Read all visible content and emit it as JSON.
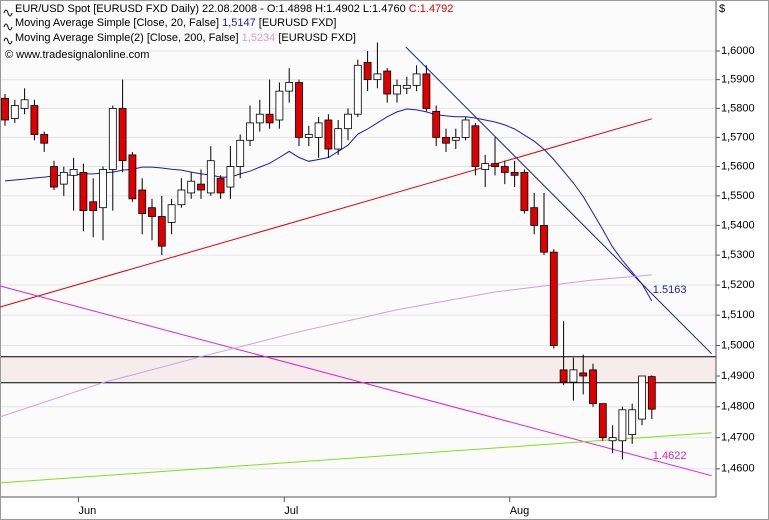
{
  "chart_data": {
    "type": "candlestick",
    "title": "EUR/USD Spot [EURUSD FXD  Daily) 22.08.2008 - O:1.4898 H:1.4902 L:1.4760",
    "title_close": "C:1.4792",
    "copyright": "© www.tradesignalonline.com",
    "y_axis_label": "$",
    "log_scale": true,
    "grid": true,
    "up_color": "#ffffff",
    "down_color": "#e00000",
    "categories": [
      null,
      null,
      null,
      null,
      null,
      null,
      null,
      null,
      "Jun",
      null,
      null,
      null,
      null,
      null,
      null,
      null,
      null,
      null,
      null,
      null,
      null,
      null,
      null,
      null,
      null,
      null,
      null,
      null,
      null,
      "Jul",
      null,
      null,
      null,
      null,
      null,
      null,
      null,
      null,
      null,
      null,
      null,
      null,
      null,
      null,
      null,
      null,
      null,
      null,
      null,
      null,
      null,
      null,
      "Aug",
      null,
      null,
      null,
      null,
      null,
      null,
      null,
      null,
      null,
      null,
      null,
      null,
      null,
      null
    ],
    "open": [
      1.5835,
      1.5765,
      1.58,
      1.581,
      1.571,
      1.56,
      1.554,
      1.557,
      1.558,
      1.548,
      1.546,
      1.559,
      1.58,
      1.564,
      1.552,
      1.546,
      1.543,
      1.541,
      1.547,
      1.551,
      1.554,
      1.551,
      1.556,
      1.553,
      1.56,
      1.569,
      1.575,
      1.578,
      1.576,
      1.586,
      1.589,
      1.57,
      1.57,
      1.576,
      1.566,
      1.573,
      1.578,
      1.596,
      1.59,
      1.593,
      1.585,
      1.587,
      1.588,
      1.592,
      1.579,
      1.57,
      1.569,
      1.57,
      1.574,
      1.559,
      1.561,
      1.56,
      1.558,
      1.558,
      1.546,
      1.54,
      1.531,
      1.492,
      1.488,
      1.491,
      1.492,
      1.481,
      1.469,
      1.469,
      1.471,
      1.476,
      1.4898
    ],
    "high": [
      1.585,
      1.583,
      1.587,
      1.583,
      1.572,
      1.562,
      1.56,
      1.563,
      1.561,
      1.556,
      1.56,
      1.581,
      1.59,
      1.565,
      1.556,
      1.549,
      1.55,
      1.549,
      1.556,
      1.558,
      1.559,
      1.567,
      1.557,
      1.567,
      1.571,
      1.581,
      1.583,
      1.59,
      1.589,
      1.594,
      1.59,
      1.574,
      1.577,
      1.578,
      1.576,
      1.58,
      1.597,
      1.6,
      1.603,
      1.594,
      1.59,
      1.591,
      1.595,
      1.595,
      1.581,
      1.573,
      1.573,
      1.577,
      1.575,
      1.564,
      1.57,
      1.562,
      1.562,
      1.559,
      1.551,
      1.551,
      1.532,
      1.508,
      1.496,
      1.497,
      1.494,
      1.481,
      1.474,
      1.48,
      1.481,
      1.49,
      1.4902
    ],
    "low": [
      1.574,
      1.575,
      1.578,
      1.569,
      1.565,
      1.552,
      1.55,
      1.545,
      1.538,
      1.536,
      1.535,
      1.545,
      1.558,
      1.548,
      1.537,
      1.535,
      1.53,
      1.537,
      1.546,
      1.549,
      1.549,
      1.55,
      1.549,
      1.549,
      1.556,
      1.567,
      1.572,
      1.573,
      1.573,
      1.582,
      1.567,
      1.567,
      1.563,
      1.563,
      1.564,
      1.569,
      1.577,
      1.586,
      1.587,
      1.582,
      1.582,
      1.585,
      1.586,
      1.579,
      1.567,
      1.565,
      1.566,
      1.569,
      1.557,
      1.553,
      1.557,
      1.554,
      1.553,
      1.544,
      1.537,
      1.53,
      1.499,
      1.487,
      1.482,
      1.484,
      1.48,
      1.469,
      1.465,
      1.463,
      1.468,
      1.474,
      1.476
    ],
    "close": [
      1.576,
      1.581,
      1.583,
      1.571,
      1.568,
      1.553,
      1.558,
      1.559,
      1.545,
      1.545,
      1.559,
      1.58,
      1.562,
      1.549,
      1.544,
      1.543,
      1.533,
      1.547,
      1.552,
      1.555,
      1.552,
      1.562,
      1.551,
      1.56,
      1.569,
      1.575,
      1.578,
      1.575,
      1.586,
      1.589,
      1.57,
      1.571,
      1.575,
      1.566,
      1.573,
      1.578,
      1.595,
      1.59,
      1.592,
      1.585,
      1.588,
      1.588,
      1.592,
      1.58,
      1.57,
      1.568,
      1.57,
      1.576,
      1.56,
      1.561,
      1.56,
      1.558,
      1.557,
      1.545,
      1.54,
      1.531,
      1.5,
      1.488,
      1.492,
      1.49,
      1.481,
      1.47,
      1.47,
      1.479,
      1.479,
      1.49,
      1.4792
    ],
    "lines": [
      {
        "name": "Moving Average Simple [Close, 20, False]",
        "value_label": "1,5147",
        "suffix": "[EURUSD FXD]",
        "color": "#1c1cb0",
        "values": [
          1.5551,
          1.5554,
          1.5557,
          1.5561,
          1.5564,
          1.5568,
          1.5571,
          1.5571,
          1.5575,
          1.5575,
          1.5578,
          1.5581,
          1.5588,
          1.5591,
          1.5598,
          1.5598,
          1.5595,
          1.5591,
          1.5588,
          1.5581,
          1.5575,
          1.5571,
          1.5564,
          1.5564,
          1.5575,
          1.5584,
          1.5598,
          1.5611,
          1.5631,
          1.5652,
          1.5631,
          1.5618,
          1.5624,
          1.5631,
          1.5652,
          1.5673,
          1.5711,
          1.5729,
          1.575,
          1.5771,
          1.5788,
          1.5798,
          1.5795,
          1.5788,
          1.5778,
          1.5774,
          1.5771,
          1.5771,
          1.5767,
          1.576,
          1.5753,
          1.5743,
          1.5729,
          1.5708,
          1.5687,
          1.5659,
          1.5624,
          1.5584,
          1.5544,
          1.5498,
          1.5442,
          1.5386,
          1.5327,
          1.5282,
          1.5243,
          1.5204,
          1.5147
        ]
      },
      {
        "name": "Moving Average Simple(2) [Close, 200, False]",
        "value_label": "1,5234",
        "suffix": "[EURUSD FXD]",
        "color": "#c8a0ec",
        "x": [
          -0.5,
          10,
          20,
          30,
          40,
          50,
          60,
          66
        ],
        "values": [
          1.4767,
          1.4878,
          1.4963,
          1.5045,
          1.5118,
          1.5177,
          1.5217,
          1.5234
        ]
      }
    ],
    "trendlines": [
      {
        "color": "#e00000",
        "x": [
          -0.5,
          66
        ],
        "values": [
          1.5127,
          1.5764
        ]
      },
      {
        "color": "#2020a0",
        "x": [
          40.9,
          72.1
        ],
        "values": [
          1.6014,
          1.4973
        ],
        "label": {
          "value": 1.5163,
          "label": "1.5163"
        }
      },
      {
        "color": "#e020d0",
        "x": [
          -0.5,
          72.1
        ],
        "values": [
          1.5197,
          1.4578
        ],
        "label": {
          "value": 1.4622,
          "label": "1.4622"
        }
      },
      {
        "color": "#80e020",
        "x": [
          -0.5,
          72.1
        ],
        "values": [
          1.4555,
          1.4716
        ]
      }
    ],
    "hlines": {
      "values": [
        1.4963,
        1.4878
      ],
      "band_color": "#f6ecec"
    },
    "ylim": [
      1.451,
      1.618
    ],
    "yticks": [
      {
        "value": 1.46,
        "label": "1,4600"
      },
      {
        "value": 1.47,
        "label": "1,4700"
      },
      {
        "value": 1.48,
        "label": "1,4800"
      },
      {
        "value": 1.49,
        "label": "1,4900"
      },
      {
        "value": 1.5,
        "label": "1,5000"
      },
      {
        "value": 1.51,
        "label": "1,5100"
      },
      {
        "value": 1.52,
        "label": "1,5200"
      },
      {
        "value": 1.53,
        "label": "1,5300"
      },
      {
        "value": 1.54,
        "label": "1,5400"
      },
      {
        "value": 1.55,
        "label": "1,5500"
      },
      {
        "value": 1.56,
        "label": "1,5600"
      },
      {
        "value": 1.57,
        "label": "1,5700"
      },
      {
        "value": 1.58,
        "label": "1,5800"
      },
      {
        "value": 1.59,
        "label": "1,5900"
      },
      {
        "value": 1.6,
        "label": "1,6000"
      }
    ]
  }
}
